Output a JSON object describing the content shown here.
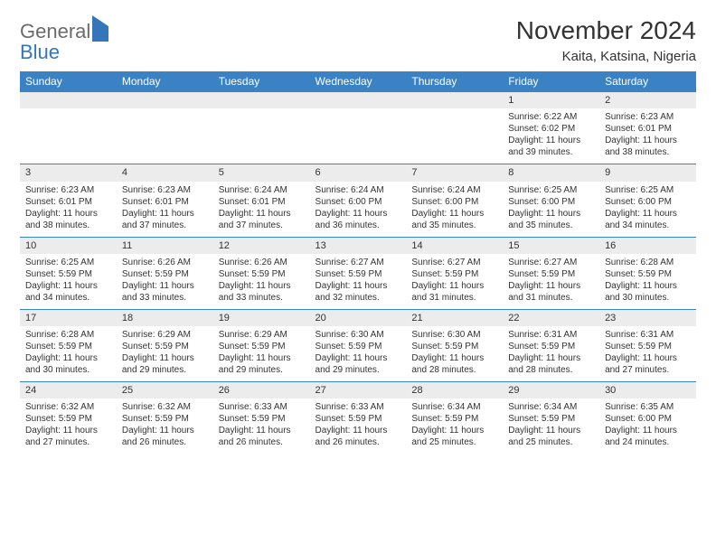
{
  "logo": {
    "part1": "General",
    "part2": "Blue"
  },
  "title": "November 2024",
  "location": "Kaita, Katsina, Nigeria",
  "colors": {
    "header_bg": "#3b82c4",
    "header_text": "#ffffff",
    "daynum_bg": "#ececec",
    "row_border": "#3b82c4",
    "logo_gray": "#6b6b6b",
    "logo_blue": "#3576ba",
    "text": "#333333",
    "page_bg": "#ffffff"
  },
  "typography": {
    "title_fontsize": 28,
    "location_fontsize": 15,
    "dow_fontsize": 12,
    "daynum_fontsize": 11,
    "body_fontsize": 10
  },
  "days_of_week": [
    "Sunday",
    "Monday",
    "Tuesday",
    "Wednesday",
    "Thursday",
    "Friday",
    "Saturday"
  ],
  "weeks": [
    [
      null,
      null,
      null,
      null,
      null,
      {
        "n": "1",
        "sunrise": "Sunrise: 6:22 AM",
        "sunset": "Sunset: 6:02 PM",
        "daylight": "Daylight: 11 hours and 39 minutes."
      },
      {
        "n": "2",
        "sunrise": "Sunrise: 6:23 AM",
        "sunset": "Sunset: 6:01 PM",
        "daylight": "Daylight: 11 hours and 38 minutes."
      }
    ],
    [
      {
        "n": "3",
        "sunrise": "Sunrise: 6:23 AM",
        "sunset": "Sunset: 6:01 PM",
        "daylight": "Daylight: 11 hours and 38 minutes."
      },
      {
        "n": "4",
        "sunrise": "Sunrise: 6:23 AM",
        "sunset": "Sunset: 6:01 PM",
        "daylight": "Daylight: 11 hours and 37 minutes."
      },
      {
        "n": "5",
        "sunrise": "Sunrise: 6:24 AM",
        "sunset": "Sunset: 6:01 PM",
        "daylight": "Daylight: 11 hours and 37 minutes."
      },
      {
        "n": "6",
        "sunrise": "Sunrise: 6:24 AM",
        "sunset": "Sunset: 6:00 PM",
        "daylight": "Daylight: 11 hours and 36 minutes."
      },
      {
        "n": "7",
        "sunrise": "Sunrise: 6:24 AM",
        "sunset": "Sunset: 6:00 PM",
        "daylight": "Daylight: 11 hours and 35 minutes."
      },
      {
        "n": "8",
        "sunrise": "Sunrise: 6:25 AM",
        "sunset": "Sunset: 6:00 PM",
        "daylight": "Daylight: 11 hours and 35 minutes."
      },
      {
        "n": "9",
        "sunrise": "Sunrise: 6:25 AM",
        "sunset": "Sunset: 6:00 PM",
        "daylight": "Daylight: 11 hours and 34 minutes."
      }
    ],
    [
      {
        "n": "10",
        "sunrise": "Sunrise: 6:25 AM",
        "sunset": "Sunset: 5:59 PM",
        "daylight": "Daylight: 11 hours and 34 minutes."
      },
      {
        "n": "11",
        "sunrise": "Sunrise: 6:26 AM",
        "sunset": "Sunset: 5:59 PM",
        "daylight": "Daylight: 11 hours and 33 minutes."
      },
      {
        "n": "12",
        "sunrise": "Sunrise: 6:26 AM",
        "sunset": "Sunset: 5:59 PM",
        "daylight": "Daylight: 11 hours and 33 minutes."
      },
      {
        "n": "13",
        "sunrise": "Sunrise: 6:27 AM",
        "sunset": "Sunset: 5:59 PM",
        "daylight": "Daylight: 11 hours and 32 minutes."
      },
      {
        "n": "14",
        "sunrise": "Sunrise: 6:27 AM",
        "sunset": "Sunset: 5:59 PM",
        "daylight": "Daylight: 11 hours and 31 minutes."
      },
      {
        "n": "15",
        "sunrise": "Sunrise: 6:27 AM",
        "sunset": "Sunset: 5:59 PM",
        "daylight": "Daylight: 11 hours and 31 minutes."
      },
      {
        "n": "16",
        "sunrise": "Sunrise: 6:28 AM",
        "sunset": "Sunset: 5:59 PM",
        "daylight": "Daylight: 11 hours and 30 minutes."
      }
    ],
    [
      {
        "n": "17",
        "sunrise": "Sunrise: 6:28 AM",
        "sunset": "Sunset: 5:59 PM",
        "daylight": "Daylight: 11 hours and 30 minutes."
      },
      {
        "n": "18",
        "sunrise": "Sunrise: 6:29 AM",
        "sunset": "Sunset: 5:59 PM",
        "daylight": "Daylight: 11 hours and 29 minutes."
      },
      {
        "n": "19",
        "sunrise": "Sunrise: 6:29 AM",
        "sunset": "Sunset: 5:59 PM",
        "daylight": "Daylight: 11 hours and 29 minutes."
      },
      {
        "n": "20",
        "sunrise": "Sunrise: 6:30 AM",
        "sunset": "Sunset: 5:59 PM",
        "daylight": "Daylight: 11 hours and 29 minutes."
      },
      {
        "n": "21",
        "sunrise": "Sunrise: 6:30 AM",
        "sunset": "Sunset: 5:59 PM",
        "daylight": "Daylight: 11 hours and 28 minutes."
      },
      {
        "n": "22",
        "sunrise": "Sunrise: 6:31 AM",
        "sunset": "Sunset: 5:59 PM",
        "daylight": "Daylight: 11 hours and 28 minutes."
      },
      {
        "n": "23",
        "sunrise": "Sunrise: 6:31 AM",
        "sunset": "Sunset: 5:59 PM",
        "daylight": "Daylight: 11 hours and 27 minutes."
      }
    ],
    [
      {
        "n": "24",
        "sunrise": "Sunrise: 6:32 AM",
        "sunset": "Sunset: 5:59 PM",
        "daylight": "Daylight: 11 hours and 27 minutes."
      },
      {
        "n": "25",
        "sunrise": "Sunrise: 6:32 AM",
        "sunset": "Sunset: 5:59 PM",
        "daylight": "Daylight: 11 hours and 26 minutes."
      },
      {
        "n": "26",
        "sunrise": "Sunrise: 6:33 AM",
        "sunset": "Sunset: 5:59 PM",
        "daylight": "Daylight: 11 hours and 26 minutes."
      },
      {
        "n": "27",
        "sunrise": "Sunrise: 6:33 AM",
        "sunset": "Sunset: 5:59 PM",
        "daylight": "Daylight: 11 hours and 26 minutes."
      },
      {
        "n": "28",
        "sunrise": "Sunrise: 6:34 AM",
        "sunset": "Sunset: 5:59 PM",
        "daylight": "Daylight: 11 hours and 25 minutes."
      },
      {
        "n": "29",
        "sunrise": "Sunrise: 6:34 AM",
        "sunset": "Sunset: 5:59 PM",
        "daylight": "Daylight: 11 hours and 25 minutes."
      },
      {
        "n": "30",
        "sunrise": "Sunrise: 6:35 AM",
        "sunset": "Sunset: 6:00 PM",
        "daylight": "Daylight: 11 hours and 24 minutes."
      }
    ]
  ]
}
